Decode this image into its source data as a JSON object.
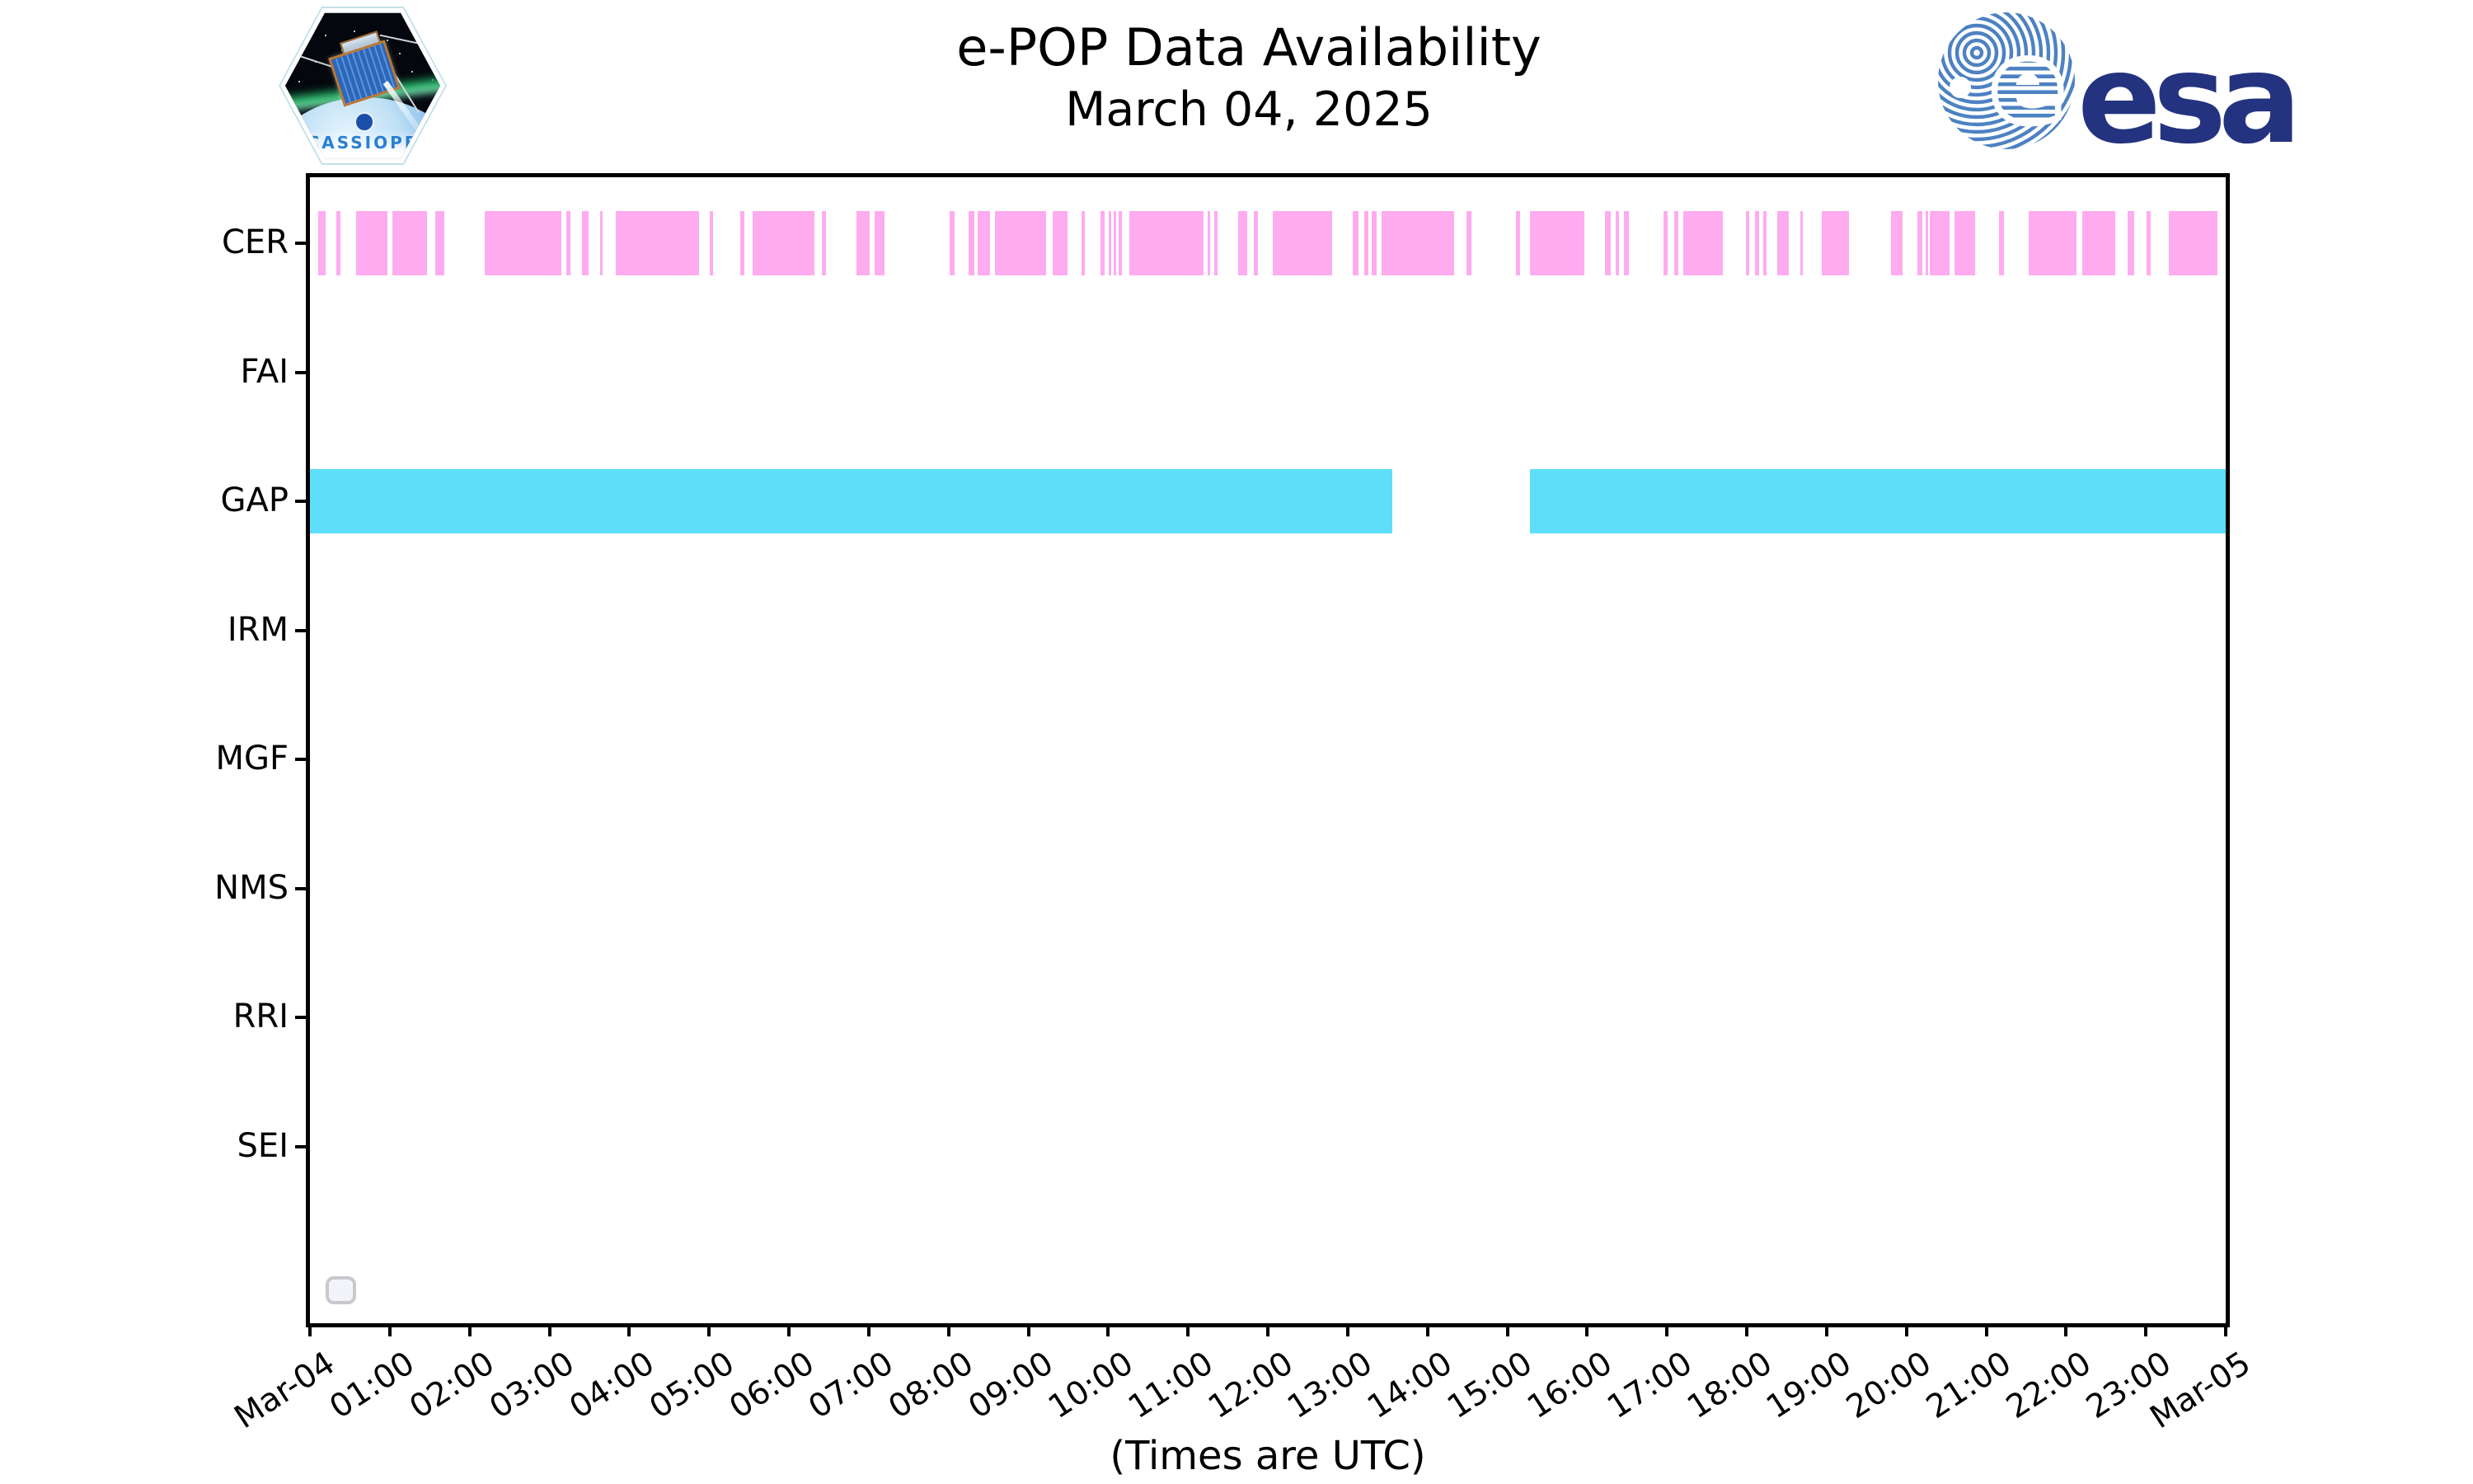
{
  "header": {
    "title_line1": "e-POP Data Availability",
    "title_line2": "March 04, 2025"
  },
  "logos": {
    "cassiope_label": "CASSIOPE",
    "esa_label": "esa"
  },
  "chart_data": {
    "type": "availability-timeline",
    "title": "e-POP Data Availability",
    "subtitle": "March 04, 2025",
    "xlabel": "(Times are UTC)",
    "x_axis": {
      "range_hours": [
        0,
        24
      ],
      "tick_labels": [
        "Mar-04",
        "01:00",
        "02:00",
        "03:00",
        "04:00",
        "05:00",
        "06:00",
        "07:00",
        "08:00",
        "09:00",
        "10:00",
        "11:00",
        "12:00",
        "13:00",
        "14:00",
        "15:00",
        "16:00",
        "17:00",
        "18:00",
        "19:00",
        "20:00",
        "21:00",
        "22:00",
        "23:00",
        "Mar-05"
      ]
    },
    "categories": [
      "CER",
      "FAI",
      "GAP",
      "IRM",
      "MGF",
      "NMS",
      "RRI",
      "SEI"
    ],
    "colors": {
      "CER": "#ffabf0",
      "GAP": "#5edef9",
      "axis": "#000000"
    },
    "series": [
      {
        "name": "CER",
        "color": "#ffabf0",
        "intervals_hours": [
          [
            0.1,
            0.2
          ],
          [
            0.33,
            0.38
          ],
          [
            0.58,
            0.97
          ],
          [
            1.03,
            1.47
          ],
          [
            1.57,
            1.68
          ],
          [
            2.19,
            3.15
          ],
          [
            3.21,
            3.26
          ],
          [
            3.41,
            3.49
          ],
          [
            3.63,
            3.67
          ],
          [
            3.83,
            4.87
          ],
          [
            5.01,
            5.05
          ],
          [
            5.39,
            5.44
          ],
          [
            5.55,
            6.32
          ],
          [
            6.41,
            6.46
          ],
          [
            6.85,
            7.01
          ],
          [
            7.07,
            7.2
          ],
          [
            8.01,
            8.08
          ],
          [
            8.25,
            8.32
          ],
          [
            8.37,
            8.52
          ],
          [
            8.58,
            9.22
          ],
          [
            9.3,
            9.49
          ],
          [
            9.67,
            9.71
          ],
          [
            9.9,
            9.96
          ],
          [
            10.01,
            10.04
          ],
          [
            10.07,
            10.09
          ],
          [
            10.13,
            10.17
          ],
          [
            10.26,
            11.19
          ],
          [
            11.25,
            11.28
          ],
          [
            11.33,
            11.37
          ],
          [
            11.63,
            11.74
          ],
          [
            11.82,
            11.88
          ],
          [
            12.06,
            12.81
          ],
          [
            13.06,
            13.14
          ],
          [
            13.21,
            13.26
          ],
          [
            13.3,
            13.36
          ],
          [
            13.42,
            14.33
          ],
          [
            14.49,
            14.55
          ],
          [
            15.11,
            15.16
          ],
          [
            15.28,
            15.97
          ],
          [
            16.22,
            16.3
          ],
          [
            16.36,
            16.4
          ],
          [
            16.46,
            16.52
          ],
          [
            16.96,
            17.01
          ],
          [
            17.09,
            17.14
          ],
          [
            17.2,
            17.7
          ],
          [
            17.99,
            18.03
          ],
          [
            18.1,
            18.15
          ],
          [
            18.21,
            18.25
          ],
          [
            18.38,
            18.53
          ],
          [
            18.67,
            18.7
          ],
          [
            18.94,
            19.28
          ],
          [
            19.81,
            19.95
          ],
          [
            20.14,
            20.2
          ],
          [
            20.24,
            20.27
          ],
          [
            20.29,
            20.54
          ],
          [
            20.6,
            20.86
          ],
          [
            21.16,
            21.22
          ],
          [
            21.53,
            22.13
          ],
          [
            22.2,
            22.62
          ],
          [
            22.77,
            22.85
          ],
          [
            23.01,
            23.06
          ],
          [
            23.29,
            23.9
          ]
        ]
      },
      {
        "name": "GAP",
        "color": "#5edef9",
        "intervals_hours": [
          [
            0,
            13.56
          ],
          [
            15.28,
            24
          ]
        ]
      }
    ],
    "legend": {
      "visible": true,
      "entries": []
    }
  }
}
